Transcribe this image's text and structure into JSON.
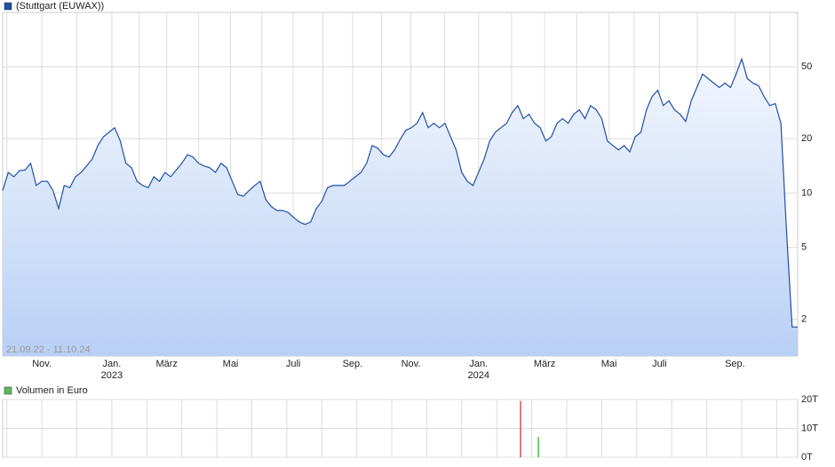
{
  "chart_data": [
    {
      "type": "line",
      "series": [
        {
          "name": "(Stuttgart (EUWAX))",
          "color": "#1f4fa8",
          "values": [
            10.3,
            13.0,
            12.3,
            13.3,
            13.4,
            14.6,
            11.0,
            11.6,
            11.6,
            10.3,
            8.2,
            11.0,
            10.7,
            12.3,
            13.0,
            14.1,
            15.4,
            18.3,
            20.5,
            21.7,
            23.0,
            19.4,
            14.6,
            13.8,
            11.6,
            11.0,
            10.7,
            12.3,
            11.6,
            13.0,
            12.3,
            13.4,
            14.6,
            16.3,
            15.8,
            14.6,
            14.1,
            13.8,
            13.0,
            14.6,
            13.8,
            11.6,
            9.8,
            9.6,
            10.3,
            11.0,
            11.6,
            9.2,
            8.4,
            8.0,
            8.0,
            7.8,
            7.3,
            6.9,
            6.7,
            6.9,
            8.2,
            9.0,
            10.7,
            11.0,
            11.0,
            11.0,
            11.6,
            12.3,
            13.0,
            14.6,
            18.3,
            17.7,
            16.3,
            15.8,
            17.3,
            19.8,
            22.2,
            23.0,
            24.3,
            27.9,
            23.0,
            24.3,
            23.0,
            24.3,
            20.5,
            17.3,
            13.0,
            11.6,
            11.0,
            13.0,
            15.4,
            19.4,
            21.7,
            23.0,
            24.3,
            27.9,
            30.5,
            25.8,
            27.3,
            24.3,
            23.0,
            19.4,
            20.5,
            24.3,
            25.8,
            24.3,
            27.3,
            28.9,
            25.8,
            30.5,
            28.9,
            25.8,
            19.4,
            18.3,
            17.3,
            18.3,
            16.9,
            20.5,
            21.7,
            28.9,
            34.2,
            37.1,
            30.5,
            32.4,
            28.9,
            27.3,
            24.9,
            32.4,
            38.4,
            45.5,
            43.0,
            40.6,
            38.4,
            40.6,
            38.4,
            45.5,
            55.3,
            43.0,
            40.6,
            39.3,
            34.2,
            30.5,
            31.3,
            24.3,
            6.2,
            1.81,
            1.81
          ]
        }
      ],
      "xlim": [
        0,
        142
      ],
      "xticks": [
        {
          "value": 7,
          "label": "Nov."
        },
        {
          "value": 19.5,
          "label": "Jan."
        },
        {
          "value": 29.3,
          "label": "März"
        },
        {
          "value": 40.7,
          "label": "Mai"
        },
        {
          "value": 51.9,
          "label": "Juli"
        },
        {
          "value": 62.5,
          "label": "Sep."
        },
        {
          "value": 72.9,
          "label": "Nov."
        },
        {
          "value": 85,
          "label": "Jan."
        },
        {
          "value": 96.8,
          "label": "März"
        },
        {
          "value": 108.3,
          "label": "Mai"
        },
        {
          "value": 117.3,
          "label": "Juli"
        },
        {
          "value": 130.8,
          "label": "Sep."
        }
      ],
      "year_labels": [
        {
          "value": 19.5,
          "label": "2023"
        },
        {
          "value": 85,
          "label": "2024"
        }
      ],
      "ylim": [
        1.25,
        100
      ],
      "yticks": [
        2,
        5,
        10,
        20,
        50
      ],
      "log_scale": true,
      "grid": true,
      "period": "21.09.22 - 11.10.24",
      "watermark": "ARIVA.DE"
    },
    {
      "type": "bar",
      "name": "Volumen in Euro",
      "legend_color": "#55bb55",
      "x": [
        92.5,
        95.7
      ],
      "values": [
        19500,
        7000
      ],
      "colors": [
        "#cc2222",
        "#22aa22"
      ],
      "xlim": [
        0,
        142
      ],
      "ylim": [
        0,
        20000
      ],
      "yticks": [
        {
          "value": 0,
          "label": "0T"
        },
        {
          "value": 10000,
          "label": "10T"
        },
        {
          "value": 20000,
          "label": "20T"
        }
      ],
      "grid": true
    }
  ]
}
